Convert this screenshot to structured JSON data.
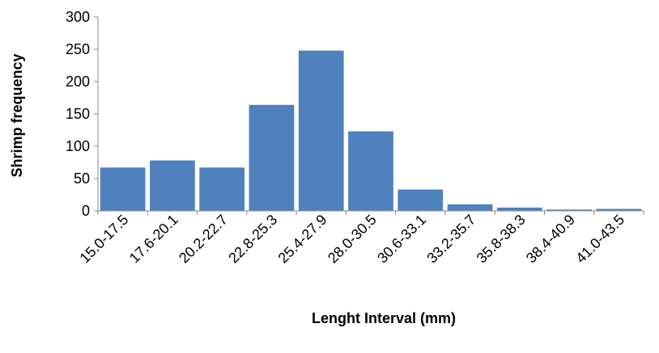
{
  "chart_data": {
    "type": "bar",
    "title": "",
    "xlabel": "Lenght Interval (mm)",
    "ylabel": "Shrimp frequency",
    "categories": [
      "15.0-17.5",
      "17.6-20.1",
      "20.2-22.7",
      "22.8-25.3",
      "25.4-27.9",
      "28.0-30.5",
      "30.6-33.1",
      "33.2-35.7",
      "35.8-38.3",
      "38.4-40.9",
      "41.0-43.5"
    ],
    "values": [
      67,
      78,
      67,
      164,
      248,
      123,
      33,
      10,
      5,
      2,
      3
    ],
    "ylim": [
      0,
      300
    ],
    "yticks": [
      0,
      50,
      100,
      150,
      200,
      250,
      300
    ],
    "grid": false,
    "legend": "none",
    "bar_color": "#4F81BD",
    "axis_color": "#868686"
  }
}
